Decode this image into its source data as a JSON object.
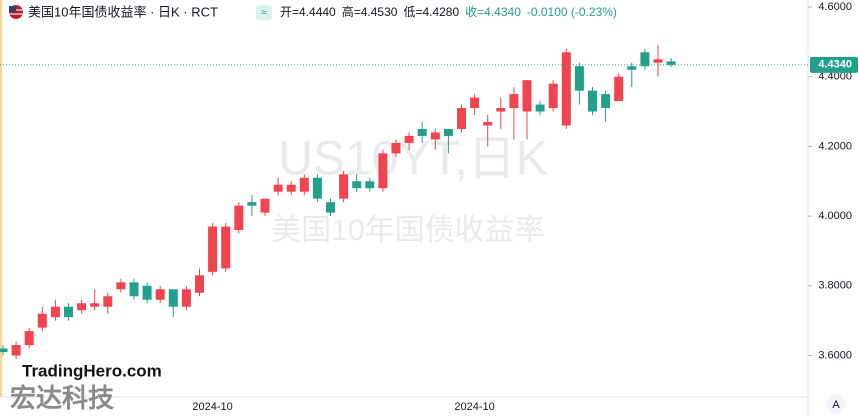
{
  "chart_data": {
    "type": "candlestick",
    "title": "美国10年国债收益率 · 日K · RCT",
    "ohlc_text": [
      "开=4.4440",
      "高=4.4530",
      "低=4.4280",
      "收=4.4340",
      "-0.0100 (-0.23%)"
    ],
    "watermark": [
      "US10YT,日K",
      "美国10年国债收益率"
    ],
    "brand": [
      "TradingHero.com",
      "宏达科技"
    ],
    "corner_button": "A",
    "categories": [
      null,
      null,
      null,
      null,
      null,
      null,
      null,
      null,
      null,
      null,
      null,
      null,
      null,
      null,
      null,
      null,
      "2024-10",
      null,
      null,
      null,
      null,
      null,
      null,
      null,
      null,
      null,
      null,
      null,
      null,
      null,
      null,
      null,
      null,
      null,
      null,
      null,
      "2024-10",
      null,
      null,
      null,
      null,
      null,
      null,
      null,
      null,
      null,
      null,
      null,
      null,
      null,
      null,
      null
    ],
    "open": [
      3.62,
      3.6,
      3.63,
      3.68,
      3.71,
      3.74,
      3.73,
      3.74,
      3.74,
      3.79,
      3.81,
      3.8,
      3.76,
      3.79,
      3.74,
      3.78,
      3.84,
      3.85,
      3.96,
      4.04,
      4.01,
      4.07,
      4.07,
      4.07,
      4.11,
      4.04,
      4.05,
      4.1,
      4.1,
      4.08,
      4.18,
      4.21,
      4.25,
      4.22,
      4.25,
      4.25,
      4.31,
      4.26,
      4.3,
      4.31,
      4.3,
      4.32,
      4.31,
      4.26,
      4.43,
      4.36,
      4.35,
      4.33,
      4.43,
      4.47,
      4.44,
      4.444
    ],
    "high": [
      3.63,
      3.64,
      3.68,
      3.74,
      3.76,
      3.75,
      3.76,
      3.79,
      3.78,
      3.82,
      3.82,
      3.81,
      3.8,
      3.79,
      3.8,
      3.85,
      3.98,
      3.98,
      4.04,
      4.06,
      4.05,
      4.11,
      4.1,
      4.12,
      4.12,
      4.05,
      4.13,
      4.12,
      4.11,
      4.19,
      4.22,
      4.24,
      4.27,
      4.25,
      4.25,
      4.32,
      4.35,
      4.29,
      4.34,
      4.37,
      4.39,
      4.33,
      4.39,
      4.48,
      4.44,
      4.37,
      4.36,
      4.41,
      4.44,
      4.48,
      4.49,
      4.453
    ],
    "low": [
      3.6,
      3.59,
      3.62,
      3.67,
      3.7,
      3.7,
      3.72,
      3.73,
      3.72,
      3.78,
      3.76,
      3.75,
      3.75,
      3.71,
      3.73,
      3.77,
      3.83,
      3.84,
      3.95,
      4.0,
      4.0,
      4.06,
      4.06,
      4.06,
      4.04,
      4.0,
      4.04,
      4.07,
      4.07,
      4.07,
      4.17,
      4.19,
      4.21,
      4.19,
      4.18,
      4.24,
      4.29,
      4.2,
      4.25,
      4.22,
      4.22,
      4.29,
      4.3,
      4.25,
      4.32,
      4.29,
      4.27,
      4.33,
      4.37,
      4.42,
      4.4,
      4.428
    ],
    "close": [
      3.61,
      3.63,
      3.67,
      3.72,
      3.74,
      3.71,
      3.75,
      3.75,
      3.77,
      3.81,
      3.77,
      3.76,
      3.79,
      3.74,
      3.79,
      3.83,
      3.97,
      3.97,
      4.03,
      4.03,
      4.05,
      4.09,
      4.09,
      4.11,
      4.05,
      4.01,
      4.12,
      4.08,
      4.08,
      4.18,
      4.21,
      4.23,
      4.23,
      4.24,
      4.23,
      4.31,
      4.34,
      4.27,
      4.31,
      4.35,
      4.39,
      4.3,
      4.38,
      4.47,
      4.36,
      4.3,
      4.31,
      4.4,
      4.42,
      4.43,
      4.45,
      4.434
    ],
    "up_color": "#f0444f",
    "down_color": "#22a08c",
    "ylim": [
      3.481,
      4.62
    ],
    "yticks": [
      {
        "value": 3.6,
        "label": "3.6000"
      },
      {
        "value": 3.8,
        "label": "3.8000"
      },
      {
        "value": 4.0,
        "label": "4.0000"
      },
      {
        "value": 4.2,
        "label": "4.2000"
      },
      {
        "value": 4.4,
        "label": "4.4000"
      },
      {
        "value": 4.6,
        "label": "4.6000"
      }
    ],
    "last_price": {
      "value": 4.434,
      "label": "4.4340"
    }
  }
}
